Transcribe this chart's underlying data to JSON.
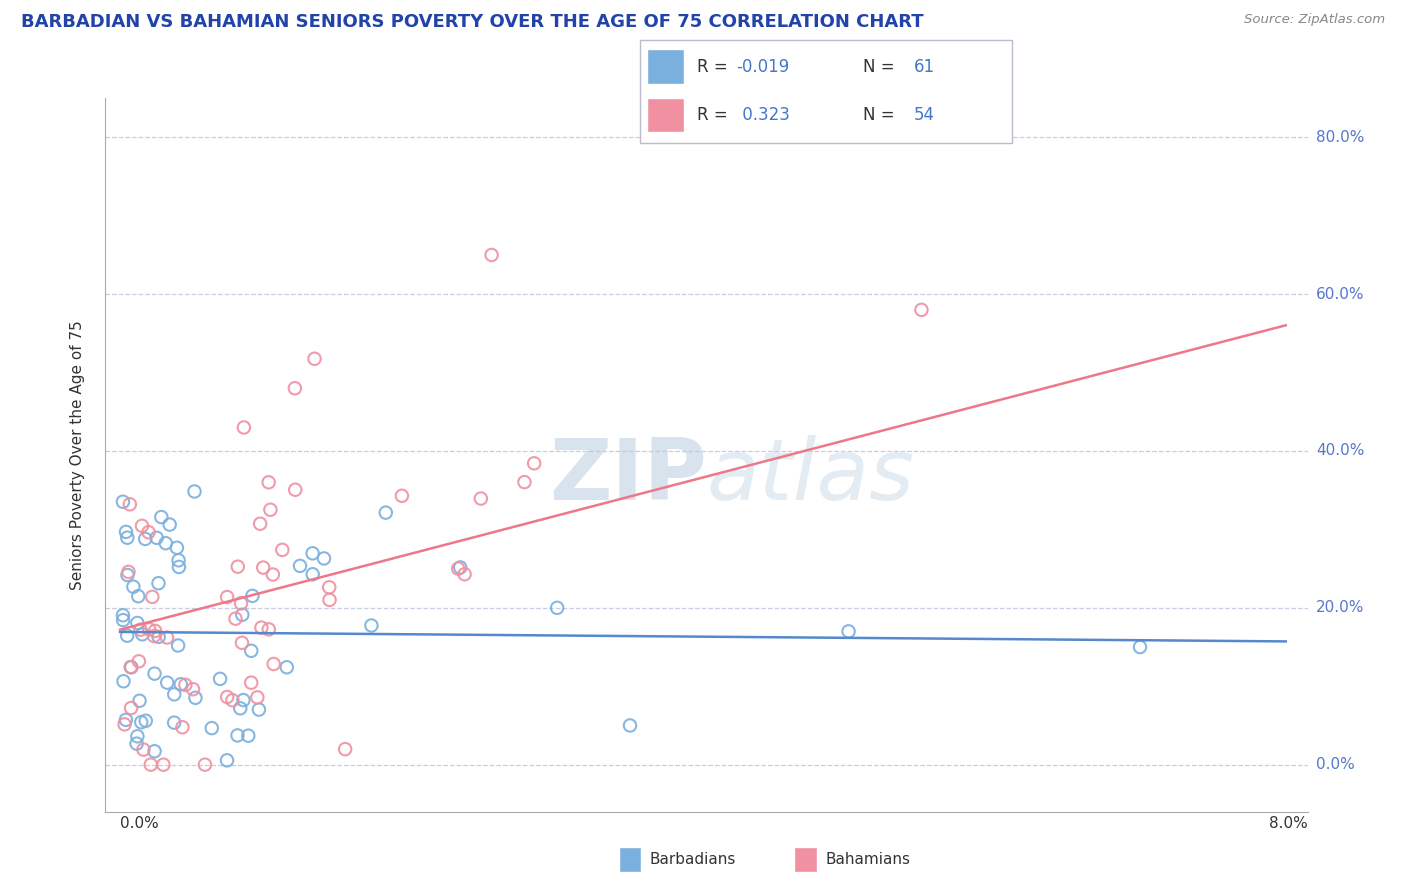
{
  "title": "BARBADIAN VS BAHAMIAN SENIORS POVERTY OVER THE AGE OF 75 CORRELATION CHART",
  "source": "Source: ZipAtlas.com",
  "ylabel": "Seniors Poverty Over the Age of 75",
  "xlim": [
    0.0,
    8.0
  ],
  "ylim": [
    0.0,
    80.0
  ],
  "yticks": [
    0,
    20,
    40,
    60,
    80
  ],
  "barbadian_color": "#7ab0dd",
  "bahamian_color": "#f090a0",
  "barbadian_line_color": "#5588cc",
  "bahamian_line_color": "#ee7788",
  "watermark_color": "#d0dce8",
  "title_color": "#2244aa",
  "source_color": "#888888",
  "axis_color": "#5577cc",
  "grid_color": "#c8cce0",
  "label_color": "#333333",
  "barbadian_R": -0.019,
  "barbadian_N": 61,
  "bahamian_R": 0.323,
  "bahamian_N": 54,
  "legend_R_color": "#4477cc",
  "legend_N_label_color": "#333333",
  "legend_N_val_color": "#4477cc"
}
